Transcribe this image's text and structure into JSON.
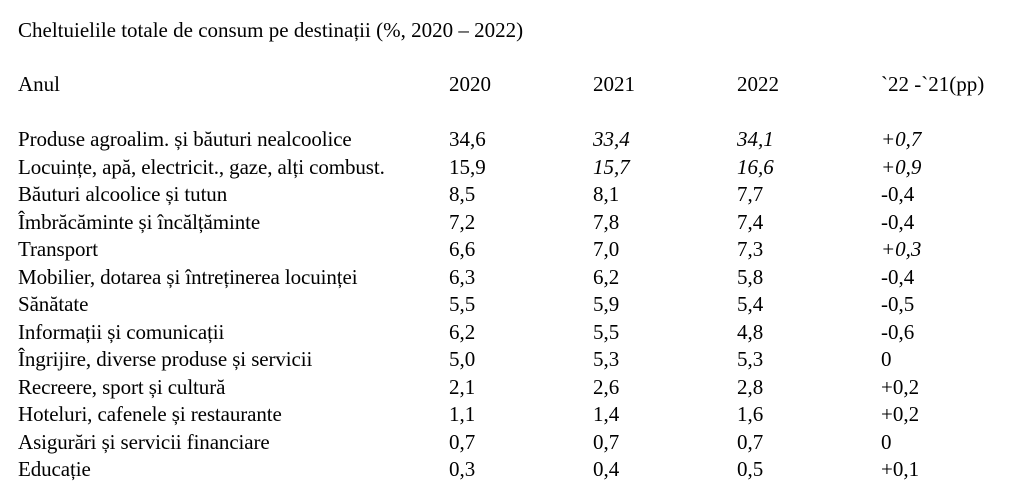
{
  "title": "Cheltuielile totale de consum pe destinații (%, 2020 – 2022)",
  "columns": [
    "Anul",
    "2020",
    "2021",
    "2022",
    "`22 -`21(pp)"
  ],
  "rows": [
    {
      "label": "Produse agroalim. și băuturi nealcoolice",
      "values": [
        "34,6",
        "33,4",
        "34,1",
        "+0,7"
      ],
      "italic": [
        false,
        true,
        true,
        true
      ]
    },
    {
      "label": "Locuințe, apă, electricit., gaze, alți combust.",
      "values": [
        "15,9",
        "15,7",
        "16,6",
        "+0,9"
      ],
      "italic": [
        false,
        true,
        true,
        true
      ]
    },
    {
      "label": "Băuturi alcoolice și tutun",
      "values": [
        "8,5",
        "8,1",
        "7,7",
        "-0,4"
      ],
      "italic": [
        false,
        false,
        false,
        false
      ]
    },
    {
      "label": "Îmbrăcăminte și încălțăminte",
      "values": [
        "7,2",
        "7,8",
        "7,4",
        "-0,4"
      ],
      "italic": [
        false,
        false,
        false,
        false
      ]
    },
    {
      "label": "Transport",
      "values": [
        "6,6",
        "7,0",
        "7,3",
        "+0,3"
      ],
      "italic": [
        false,
        false,
        false,
        true
      ]
    },
    {
      "label": "Mobilier, dotarea și întreținerea locuinței",
      "values": [
        "6,3",
        "6,2",
        "5,8",
        "-0,4"
      ],
      "italic": [
        false,
        false,
        false,
        false
      ]
    },
    {
      "label": "Sănătate",
      "values": [
        "5,5",
        "5,9",
        "5,4",
        "-0,5"
      ],
      "italic": [
        false,
        false,
        false,
        false
      ]
    },
    {
      "label": "Informații și comunicații",
      "values": [
        "6,2",
        "5,5",
        "4,8",
        "-0,6"
      ],
      "italic": [
        false,
        false,
        false,
        false
      ]
    },
    {
      "label": "Îngrijire, diverse produse și servicii",
      "values": [
        "5,0",
        "5,3",
        "5,3",
        "0"
      ],
      "italic": [
        false,
        false,
        false,
        false
      ]
    },
    {
      "label": "Recreere, sport și cultură",
      "values": [
        "2,1",
        "2,6",
        "2,8",
        "+0,2"
      ],
      "italic": [
        false,
        false,
        false,
        false
      ]
    },
    {
      "label": "Hoteluri, cafenele și restaurante",
      "values": [
        "1,1",
        "1,4",
        "1,6",
        "+0,2"
      ],
      "italic": [
        false,
        false,
        false,
        false
      ]
    },
    {
      "label": "Asigurări și servicii financiare",
      "values": [
        "0,7",
        "0,7",
        "0,7",
        "0"
      ],
      "italic": [
        false,
        false,
        false,
        false
      ]
    },
    {
      "label": "Educație",
      "values": [
        "0,3",
        "0,4",
        "0,5",
        "+0,1"
      ],
      "italic": [
        false,
        false,
        false,
        false
      ]
    }
  ]
}
